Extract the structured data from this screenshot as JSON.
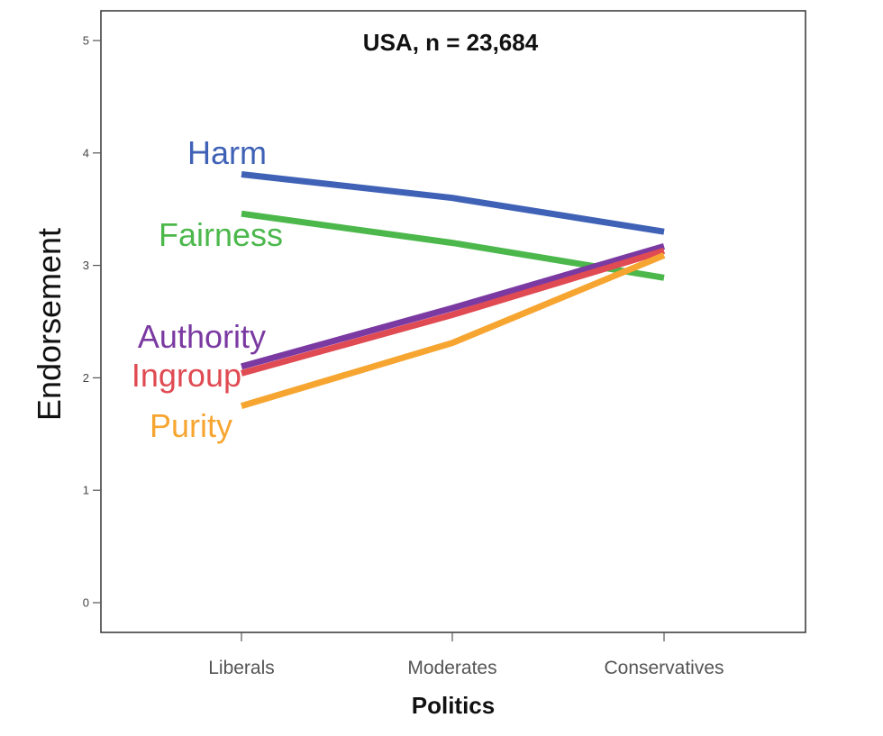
{
  "chart_data": {
    "type": "line",
    "title": "USA, n = 23,684",
    "xlabel": "Politics",
    "ylabel": "Endorsement",
    "categories": [
      "Liberals",
      "Moderates",
      "Conservatives"
    ],
    "ylim": [
      0,
      5
    ],
    "yticks": [
      "0",
      "1",
      "2",
      "3",
      "4",
      "5"
    ],
    "grid": false,
    "legend": "direct labels at left of lines",
    "series": [
      {
        "name": "Harm",
        "values": [
          3.81,
          3.6,
          3.3
        ],
        "color": "#3F62B6"
      },
      {
        "name": "Fairness",
        "values": [
          3.46,
          3.2,
          2.89
        ],
        "color": "#4CB84C"
      },
      {
        "name": "Authority",
        "values": [
          2.1,
          2.62,
          3.17
        ],
        "color": "#7B3AA2"
      },
      {
        "name": "Ingroup",
        "values": [
          2.04,
          2.56,
          3.13
        ],
        "color": "#E04A52"
      },
      {
        "name": "Purity",
        "values": [
          1.75,
          2.31,
          3.09
        ],
        "color": "#F7A531"
      }
    ]
  }
}
